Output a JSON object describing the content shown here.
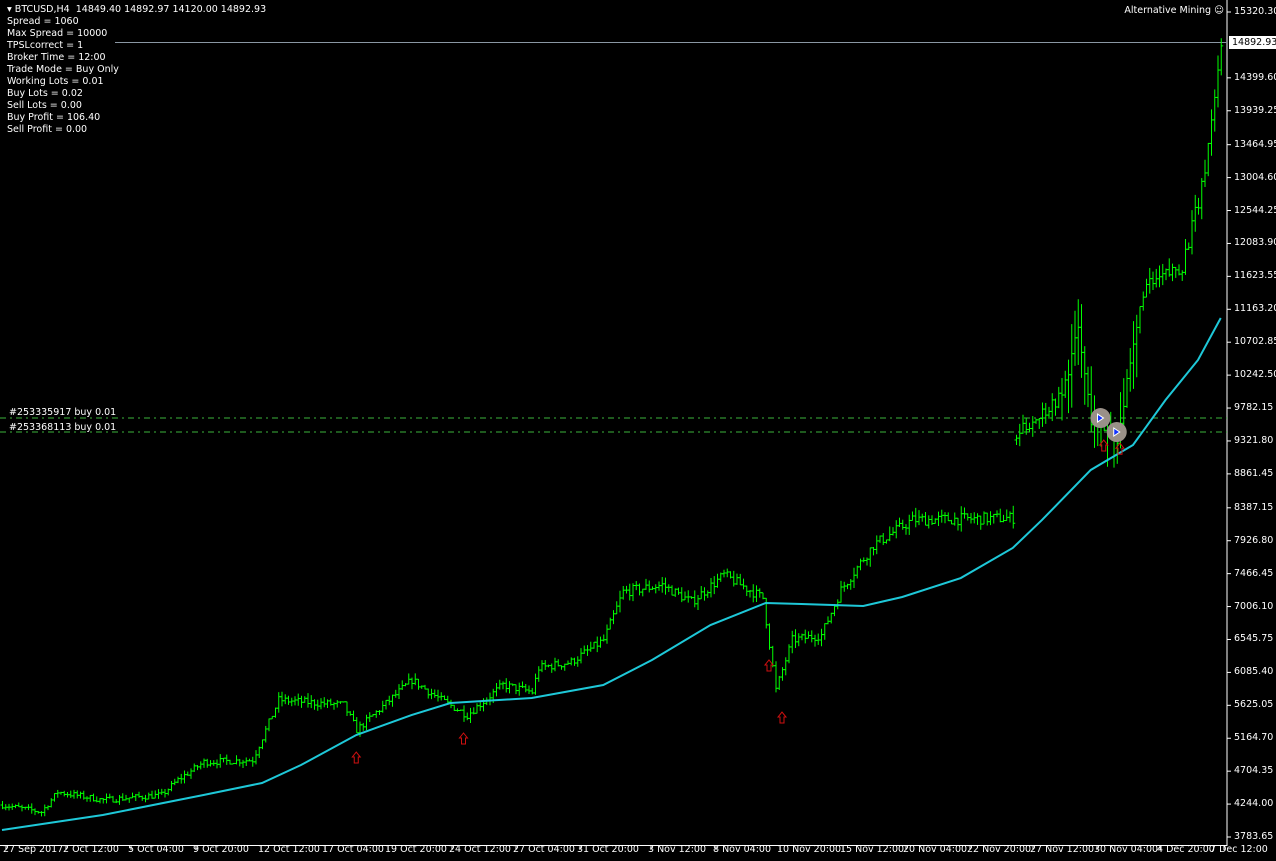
{
  "header": {
    "symbol": "BTCUSD,H4",
    "ohlc": "14849.40 14892.97 14120.00 14892.93",
    "brand": "Alternative Mining",
    "brand_icon": "smiley-icon"
  },
  "info_lines": [
    "Spread = 1060",
    "Max Spread = 10000",
    "TPSLcorrect = 1",
    "Broker Time = 12:00",
    "Trade Mode = Buy Only",
    "Working Lots = 0.01",
    "Buy Lots = 0.02",
    "Sell Lots = 0.00",
    "Buy Profit = 106.40",
    "Sell Profit = 0.00"
  ],
  "orders": [
    {
      "label": "#253335917 buy 0.01",
      "price": 9642
    },
    {
      "label": "#253368113 buy 0.01",
      "price": 9447
    }
  ],
  "colors": {
    "bars": "#00ff00",
    "ma": "#1ec8d8",
    "orders": "#3cb43c",
    "signals": "#d01010",
    "bid": "#8a97a3"
  },
  "chart_data": {
    "type": "ohlc",
    "symbol": "BTCUSD",
    "timeframe": "H4",
    "ylim": [
      3783.65,
      15320.3
    ],
    "bid": "14892.93",
    "y_ticks": [
      "15320.30",
      "14399.60",
      "13939.25",
      "13464.95",
      "13004.60",
      "12544.25",
      "12083.90",
      "11623.55",
      "11163.20",
      "10702.85",
      "10242.50",
      "9782.15",
      "9321.80",
      "8861.45",
      "8387.15",
      "7926.80",
      "7466.45",
      "7006.10",
      "6545.75",
      "6085.40",
      "5625.05",
      "5164.70",
      "4704.35",
      "4244.00",
      "3783.65"
    ],
    "x_ticks": [
      "27 Sep 2017",
      "2 Oct 12:00",
      "5 Oct 04:00",
      "9 Oct 20:00",
      "12 Oct 12:00",
      "17 Oct 04:00",
      "19 Oct 20:00",
      "24 Oct 12:00",
      "27 Oct 04:00",
      "31 Oct 20:00",
      "3 Nov 12:00",
      "8 Nov 04:00",
      "10 Nov 20:00",
      "15 Nov 12:00",
      "20 Nov 04:00",
      "22 Nov 20:00",
      "27 Nov 12:00",
      "30 Nov 04:00",
      "4 Dec 20:00",
      "7 Dec 12:00"
    ],
    "total_bars": 376,
    "price_path": [
      [
        0,
        4231
      ],
      [
        12,
        4133
      ],
      [
        17,
        4413
      ],
      [
        31,
        4301
      ],
      [
        49,
        4371
      ],
      [
        54,
        4581
      ],
      [
        62,
        4832
      ],
      [
        77,
        4860
      ],
      [
        85,
        5699
      ],
      [
        105,
        5629
      ],
      [
        109,
        5280
      ],
      [
        126,
        5979
      ],
      [
        135,
        5699
      ],
      [
        143,
        5490
      ],
      [
        154,
        5909
      ],
      [
        163,
        5811
      ],
      [
        165,
        6147
      ],
      [
        175,
        6231
      ],
      [
        185,
        6538
      ],
      [
        191,
        7210
      ],
      [
        203,
        7307
      ],
      [
        212,
        7070
      ],
      [
        222,
        7447
      ],
      [
        234,
        7126
      ],
      [
        238,
        5839
      ],
      [
        243,
        6538
      ],
      [
        252,
        6608
      ],
      [
        258,
        7238
      ],
      [
        268,
        7867
      ],
      [
        280,
        8217
      ],
      [
        311,
        8245
      ],
      [
        312,
        9405
      ],
      [
        326,
        9964
      ],
      [
        331,
        10873
      ],
      [
        335,
        9615
      ],
      [
        343,
        9363
      ],
      [
        348,
        10594
      ],
      [
        351,
        11432
      ],
      [
        363,
        11782
      ],
      [
        369,
        12831
      ],
      [
        372,
        13810
      ],
      [
        375,
        14859
      ]
    ],
    "moving_average": [
      [
        0,
        3882
      ],
      [
        31,
        4091
      ],
      [
        62,
        4371
      ],
      [
        80,
        4539
      ],
      [
        92,
        4790
      ],
      [
        109,
        5210
      ],
      [
        126,
        5489
      ],
      [
        138,
        5657
      ],
      [
        163,
        5727
      ],
      [
        185,
        5909
      ],
      [
        200,
        6259
      ],
      [
        218,
        6748
      ],
      [
        235,
        7056
      ],
      [
        246,
        7042
      ],
      [
        265,
        7014
      ],
      [
        277,
        7140
      ],
      [
        295,
        7405
      ],
      [
        311,
        7825
      ],
      [
        320,
        8217
      ],
      [
        335,
        8916
      ],
      [
        348,
        9265
      ],
      [
        358,
        9894
      ],
      [
        368,
        10454
      ],
      [
        375,
        11041
      ]
    ],
    "buy_signals": [
      [
        109,
        4972
      ],
      [
        142,
        5238
      ],
      [
        236,
        6259
      ],
      [
        240,
        5531
      ],
      [
        339,
        9335
      ],
      [
        344,
        9290
      ]
    ],
    "entries": [
      [
        338,
        9642
      ],
      [
        343,
        9447
      ]
    ]
  }
}
